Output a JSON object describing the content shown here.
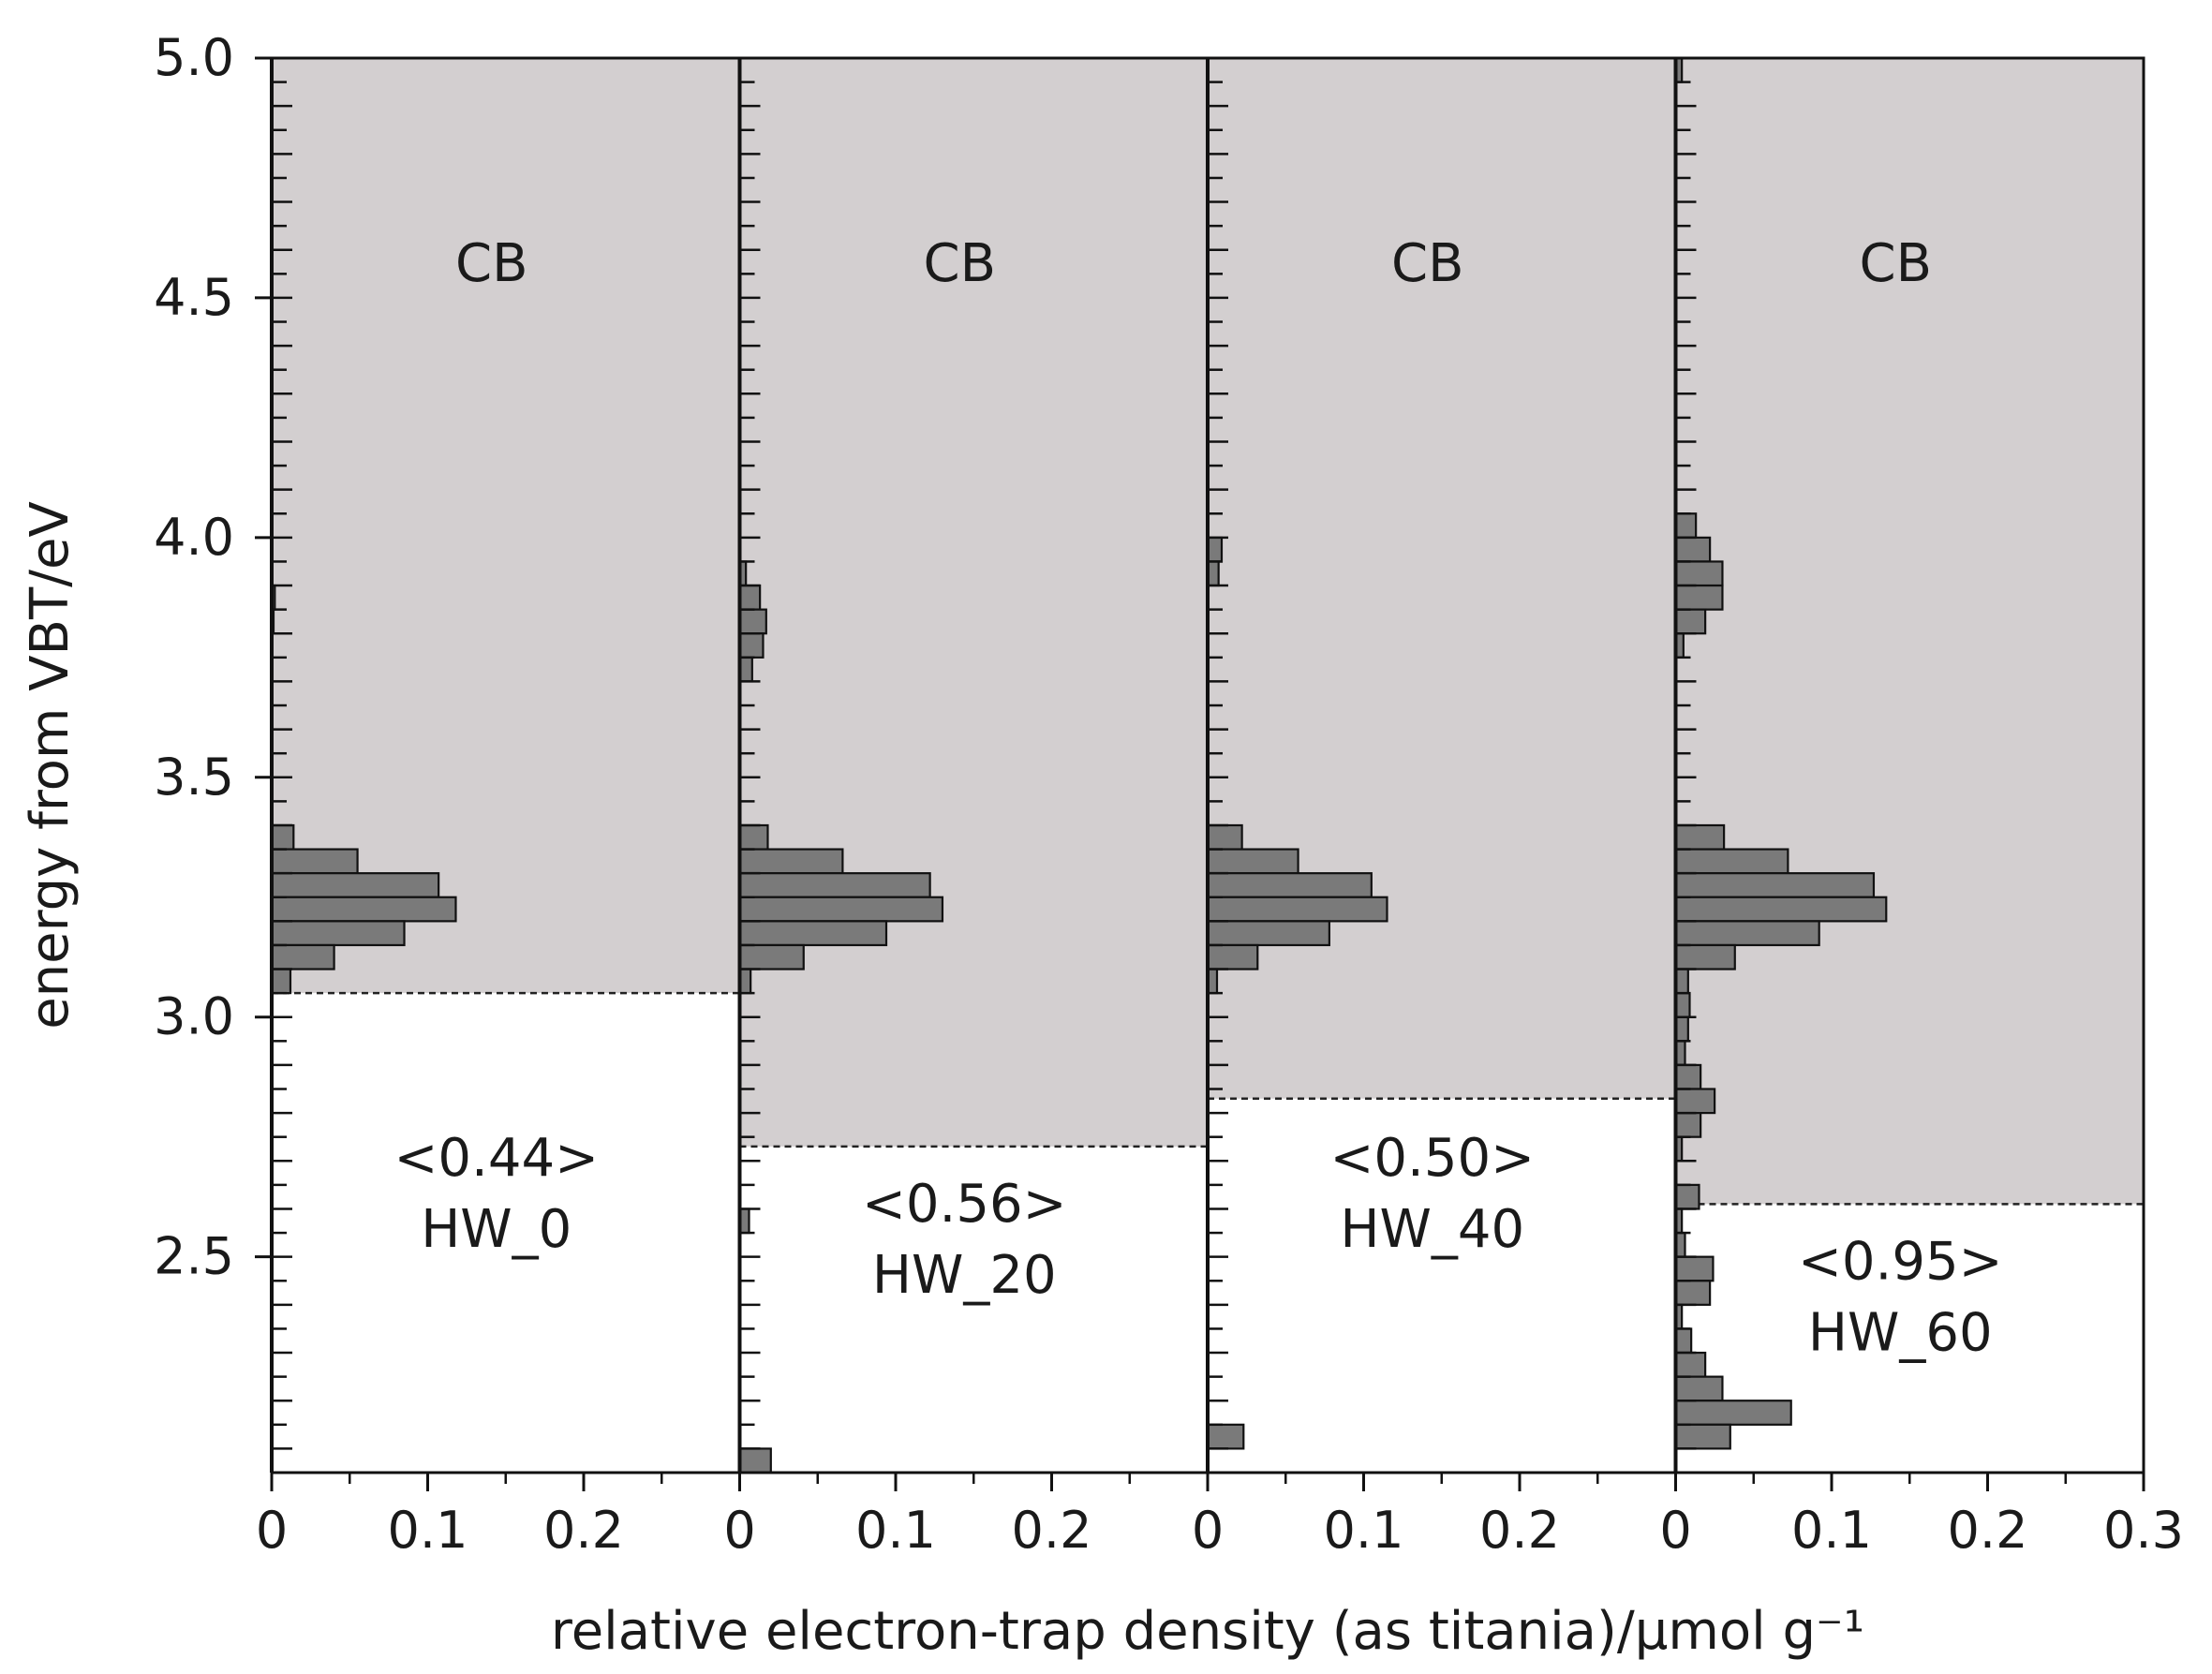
{
  "chart_data": {
    "type": "bar",
    "orientation": "horizontal-histogram-panels",
    "xlabel": "relative electron-trap density (as titania)/μmol g⁻¹",
    "ylabel": "energy from VBT/eV",
    "ylim": [
      2.05,
      5.0
    ],
    "y_ticks": [
      "5.0",
      "4.5",
      "4.0",
      "3.5",
      "3.0",
      "2.5"
    ],
    "y_tick_values": [
      5.0,
      4.5,
      4.0,
      3.5,
      3.0,
      2.5
    ],
    "xlim": [
      0,
      0.3
    ],
    "bin_width_eV": 0.05,
    "bar_color": "#7a7a7a",
    "cb_color": "#d3cfd0",
    "panels": [
      {
        "sample": "HW_0",
        "value_label": "<0.44>",
        "band_label": "CB",
        "cb_edge_eV": 3.05,
        "x_tick_labels": [
          "0",
          "0.1",
          "0.2"
        ],
        "bins": [
          {
            "y": 3.375,
            "v": 0.014
          },
          {
            "y": 3.325,
            "v": 0.055
          },
          {
            "y": 3.275,
            "v": 0.107
          },
          {
            "y": 3.225,
            "v": 0.118
          },
          {
            "y": 3.175,
            "v": 0.085
          },
          {
            "y": 3.125,
            "v": 0.04
          },
          {
            "y": 3.075,
            "v": 0.012
          },
          {
            "y": 3.875,
            "v": 0.002
          },
          {
            "y": 3.825,
            "v": 0.001
          }
        ]
      },
      {
        "sample": "HW_20",
        "value_label": "<0.56>",
        "band_label": "CB",
        "cb_edge_eV": 2.73,
        "x_tick_labels": [
          "0",
          "0.1",
          "0.2"
        ],
        "bins": [
          {
            "y": 3.375,
            "v": 0.018
          },
          {
            "y": 3.325,
            "v": 0.066
          },
          {
            "y": 3.275,
            "v": 0.122
          },
          {
            "y": 3.225,
            "v": 0.13
          },
          {
            "y": 3.175,
            "v": 0.094
          },
          {
            "y": 3.125,
            "v": 0.041
          },
          {
            "y": 3.075,
            "v": 0.007
          },
          {
            "y": 3.925,
            "v": 0.004
          },
          {
            "y": 3.875,
            "v": 0.013
          },
          {
            "y": 3.825,
            "v": 0.017
          },
          {
            "y": 3.775,
            "v": 0.015
          },
          {
            "y": 3.725,
            "v": 0.008
          },
          {
            "y": 2.575,
            "v": 0.006
          },
          {
            "y": 2.075,
            "v": 0.02
          }
        ]
      },
      {
        "sample": "HW_40",
        "value_label": "<0.50>",
        "band_label": "CB",
        "cb_edge_eV": 2.83,
        "x_tick_labels": [
          "0",
          "0.1",
          "0.2"
        ],
        "bins": [
          {
            "y": 3.375,
            "v": 0.022
          },
          {
            "y": 3.325,
            "v": 0.058
          },
          {
            "y": 3.275,
            "v": 0.105
          },
          {
            "y": 3.225,
            "v": 0.115
          },
          {
            "y": 3.175,
            "v": 0.078
          },
          {
            "y": 3.125,
            "v": 0.032
          },
          {
            "y": 3.075,
            "v": 0.006
          },
          {
            "y": 3.975,
            "v": 0.009
          },
          {
            "y": 3.925,
            "v": 0.007
          },
          {
            "y": 2.125,
            "v": 0.023
          }
        ]
      },
      {
        "sample": "HW_60",
        "value_label": "<0.95>",
        "band_label": "CB",
        "cb_edge_eV": 2.61,
        "x_tick_labels": [
          "0",
          "0.1",
          "0.2",
          "0.3"
        ],
        "bins": [
          {
            "y": 3.375,
            "v": 0.031
          },
          {
            "y": 3.325,
            "v": 0.072
          },
          {
            "y": 3.275,
            "v": 0.127
          },
          {
            "y": 3.225,
            "v": 0.135
          },
          {
            "y": 3.175,
            "v": 0.092
          },
          {
            "y": 3.125,
            "v": 0.038
          },
          {
            "y": 3.075,
            "v": 0.008
          },
          {
            "y": 4.025,
            "v": 0.013
          },
          {
            "y": 3.975,
            "v": 0.022
          },
          {
            "y": 3.925,
            "v": 0.03
          },
          {
            "y": 3.875,
            "v": 0.03
          },
          {
            "y": 3.825,
            "v": 0.019
          },
          {
            "y": 3.775,
            "v": 0.005
          },
          {
            "y": 3.025,
            "v": 0.009
          },
          {
            "y": 2.975,
            "v": 0.008
          },
          {
            "y": 2.925,
            "v": 0.006
          },
          {
            "y": 2.875,
            "v": 0.016
          },
          {
            "y": 2.825,
            "v": 0.025
          },
          {
            "y": 2.775,
            "v": 0.016
          },
          {
            "y": 2.725,
            "v": 0.004
          },
          {
            "y": 2.625,
            "v": 0.015
          },
          {
            "y": 2.575,
            "v": 0.004
          },
          {
            "y": 2.525,
            "v": 0.006
          },
          {
            "y": 2.475,
            "v": 0.024
          },
          {
            "y": 2.425,
            "v": 0.022
          },
          {
            "y": 2.375,
            "v": 0.004
          },
          {
            "y": 2.325,
            "v": 0.01
          },
          {
            "y": 2.275,
            "v": 0.019
          },
          {
            "y": 2.225,
            "v": 0.03
          },
          {
            "y": 2.175,
            "v": 0.074
          },
          {
            "y": 2.125,
            "v": 0.035
          },
          {
            "y": 4.975,
            "v": 0.004
          }
        ]
      }
    ]
  }
}
